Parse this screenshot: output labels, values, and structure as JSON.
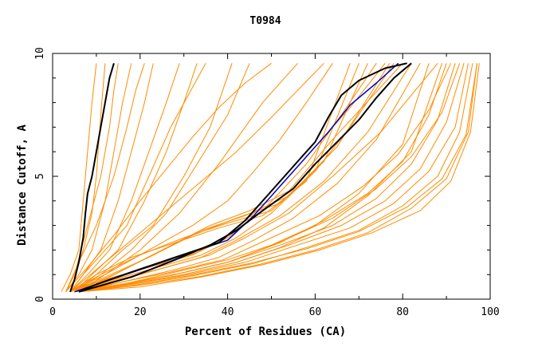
{
  "chart_data": {
    "type": "line",
    "title": "T0984",
    "xlabel": "Percent of Residues (CA)",
    "ylabel": "Distance Cutoff, A",
    "xlim": [
      0,
      100
    ],
    "ylim": [
      0,
      10
    ],
    "xticks": [
      0,
      20,
      40,
      60,
      80,
      100
    ],
    "yticks": [
      0,
      5,
      10
    ],
    "x_tick_labels": [
      "0",
      "20",
      "40",
      "60",
      "80",
      "100"
    ],
    "y_tick_labels": [
      "0",
      "5",
      "10"
    ],
    "colors": {
      "bundle": "#ff8c00",
      "highlight": "#000000",
      "blue": "#0000cc"
    },
    "series": [
      {
        "name": "orange-steep-01",
        "color": "#ff8c00",
        "x": [
          2,
          4,
          6,
          7,
          8,
          9,
          10
        ],
        "y": [
          0.3,
          1,
          2,
          4,
          6,
          8,
          9.6
        ]
      },
      {
        "name": "orange-steep-02",
        "color": "#ff8c00",
        "x": [
          3,
          5,
          7,
          9,
          10,
          11,
          12
        ],
        "y": [
          0.3,
          1,
          2,
          3.5,
          5,
          7.5,
          9.6
        ]
      },
      {
        "name": "orange-steep-03",
        "color": "#ff8c00",
        "x": [
          3,
          6,
          9,
          12,
          14,
          16,
          18
        ],
        "y": [
          0.3,
          1,
          2,
          4,
          6,
          8,
          9.6
        ]
      },
      {
        "name": "orange-steep-04",
        "color": "#ff8c00",
        "x": [
          4,
          7,
          11,
          15,
          18,
          21,
          23
        ],
        "y": [
          0.3,
          1,
          2,
          4,
          6,
          8,
          9.6
        ]
      },
      {
        "name": "orange-steep-05",
        "color": "#ff8c00",
        "x": [
          4,
          8,
          13,
          18,
          22,
          26,
          29
        ],
        "y": [
          0.3,
          1,
          2,
          4,
          6,
          8,
          9.6
        ]
      },
      {
        "name": "orange-steep-06",
        "color": "#ff8c00",
        "x": [
          5,
          9,
          15,
          21,
          26,
          30,
          33
        ],
        "y": [
          0.3,
          1,
          2,
          4,
          6,
          8,
          9.6
        ]
      },
      {
        "name": "orange-steep-07",
        "color": "#ff8c00",
        "x": [
          3,
          5,
          8,
          11,
          13,
          14,
          15
        ],
        "y": [
          0.3,
          1,
          3,
          5,
          7,
          8.5,
          9.6
        ]
      },
      {
        "name": "orange-steep-08",
        "color": "#ff8c00",
        "x": [
          4,
          7,
          12,
          17,
          22,
          27,
          35
        ],
        "y": [
          0.3,
          1,
          2,
          3,
          5,
          7,
          9.6
        ]
      },
      {
        "name": "orange-steep-09",
        "color": "#ff8c00",
        "x": [
          5,
          10,
          16,
          23,
          30,
          36,
          41
        ],
        "y": [
          0.3,
          1,
          2,
          3,
          5,
          7,
          9.6
        ]
      },
      {
        "name": "orange-steep-10",
        "color": "#ff8c00",
        "x": [
          5,
          11,
          18,
          26,
          33,
          40,
          45
        ],
        "y": [
          0.3,
          1,
          2,
          3.5,
          5.5,
          7.5,
          9.6
        ]
      },
      {
        "name": "orange-steep-11",
        "color": "#ff8c00",
        "x": [
          6,
          12,
          20,
          29,
          38,
          48,
          56
        ],
        "y": [
          0.3,
          1,
          2,
          3.5,
          5.5,
          8,
          9.6
        ]
      },
      {
        "name": "orange-steep-12",
        "color": "#ff8c00",
        "x": [
          3,
          6,
          10,
          14,
          17,
          19,
          21
        ],
        "y": [
          0.3,
          1.5,
          3,
          5,
          7,
          8.5,
          9.6
        ]
      },
      {
        "name": "orange-mid-01",
        "color": "#ff8c00",
        "x": [
          4,
          12,
          22,
          32,
          40,
          48,
          58,
          66,
          74
        ],
        "y": [
          0.3,
          0.8,
          1.3,
          1.8,
          2.5,
          3.6,
          5.5,
          7.5,
          9.6
        ]
      },
      {
        "name": "orange-mid-02",
        "color": "#ff8c00",
        "x": [
          5,
          14,
          24,
          34,
          42,
          50,
          60,
          68,
          78
        ],
        "y": [
          0.3,
          0.8,
          1.3,
          1.8,
          2.5,
          3.5,
          5.2,
          7,
          9.6
        ]
      },
      {
        "name": "orange-mid-03",
        "color": "#ff8c00",
        "x": [
          5,
          14,
          24,
          34,
          42,
          52,
          62,
          72,
          82
        ],
        "y": [
          0.3,
          0.7,
          1.2,
          1.7,
          2.4,
          3.4,
          4.8,
          6.8,
          9.6
        ]
      },
      {
        "name": "orange-mid-04",
        "color": "#ff8c00",
        "x": [
          6,
          16,
          28,
          38,
          46,
          55,
          65,
          74,
          84
        ],
        "y": [
          0.3,
          0.7,
          1.2,
          1.7,
          2.4,
          3.3,
          4.7,
          6.5,
          9.6
        ]
      },
      {
        "name": "orange-mid-05",
        "color": "#ff8c00",
        "x": [
          6,
          16,
          28,
          40,
          50,
          60,
          70,
          80,
          86
        ],
        "y": [
          0.3,
          0.6,
          1.1,
          1.6,
          2.2,
          3,
          4.3,
          6.3,
          9.6
        ]
      },
      {
        "name": "orange-mid-06",
        "color": "#ff8c00",
        "x": [
          6,
          18,
          30,
          42,
          52,
          62,
          72,
          82,
          89
        ],
        "y": [
          0.3,
          0.6,
          1,
          1.5,
          2.1,
          2.9,
          4.2,
          6,
          9.6
        ]
      },
      {
        "name": "orange-mid-07",
        "color": "#ff8c00",
        "x": [
          5,
          14,
          24,
          33,
          40,
          48,
          58,
          68,
          76
        ],
        "y": [
          0.3,
          0.9,
          1.4,
          1.9,
          2.6,
          3.8,
          5.8,
          7.8,
          9.6
        ]
      },
      {
        "name": "orange-mid-08",
        "color": "#ff8c00",
        "x": [
          5,
          15,
          26,
          36,
          44,
          54,
          64,
          75,
          88
        ],
        "y": [
          0.3,
          0.8,
          1.3,
          1.8,
          2.5,
          3.5,
          5,
          6.8,
          9.6
        ]
      },
      {
        "name": "orange-plateau-01",
        "color": "#ff8c00",
        "x": [
          4,
          10,
          18,
          28,
          38,
          48,
          58,
          68
        ],
        "y": [
          0.3,
          1,
          1.7,
          2.3,
          2.9,
          3.4,
          4.8,
          9.6
        ]
      },
      {
        "name": "orange-plateau-02",
        "color": "#ff8c00",
        "x": [
          4,
          11,
          20,
          30,
          40,
          50,
          60,
          70
        ],
        "y": [
          0.3,
          1,
          1.8,
          2.5,
          3.1,
          3.6,
          5.2,
          9.6
        ]
      },
      {
        "name": "orange-plateau-03",
        "color": "#ff8c00",
        "x": [
          4,
          12,
          22,
          32,
          42,
          52,
          62,
          72
        ],
        "y": [
          0.3,
          0.9,
          1.7,
          2.6,
          3.3,
          3.9,
          5.6,
          9.6
        ]
      },
      {
        "name": "orange-plateau-04",
        "color": "#ff8c00",
        "x": [
          4,
          13,
          24,
          34,
          44,
          54,
          65,
          77
        ],
        "y": [
          0.3,
          0.9,
          1.9,
          2.8,
          3.4,
          4.2,
          6.2,
          9.6
        ]
      },
      {
        "name": "orange-plateau-05",
        "color": "#ff8c00",
        "x": [
          5,
          14,
          25,
          36,
          45,
          54,
          64,
          80
        ],
        "y": [
          0.3,
          1,
          2,
          3,
          3.6,
          4.4,
          6.5,
          9.6
        ]
      },
      {
        "name": "orange-right-01",
        "color": "#ff8c00",
        "x": [
          5,
          16,
          28,
          40,
          52,
          62,
          72,
          80,
          86,
          90
        ],
        "y": [
          0.3,
          0.6,
          1,
          1.5,
          2.3,
          3.2,
          4.3,
          5.6,
          7.5,
          9.6
        ]
      },
      {
        "name": "orange-right-02",
        "color": "#ff8c00",
        "x": [
          5,
          16,
          28,
          40,
          52,
          64,
          74,
          82,
          88,
          92
        ],
        "y": [
          0.3,
          0.6,
          1,
          1.5,
          2.2,
          3,
          4.1,
          5.5,
          7.3,
          9.6
        ]
      },
      {
        "name": "orange-right-03",
        "color": "#ff8c00",
        "x": [
          5,
          17,
          30,
          42,
          54,
          66,
          76,
          84,
          90,
          94
        ],
        "y": [
          0.3,
          0.6,
          1,
          1.5,
          2.2,
          3,
          4,
          5.3,
          7.2,
          9.6
        ]
      },
      {
        "name": "orange-right-04",
        "color": "#ff8c00",
        "x": [
          6,
          18,
          31,
          44,
          56,
          68,
          78,
          86,
          92,
          95
        ],
        "y": [
          0.3,
          0.6,
          1,
          1.5,
          2.2,
          2.9,
          3.9,
          5.2,
          7,
          9.6
        ]
      },
      {
        "name": "orange-right-05",
        "color": "#ff8c00",
        "x": [
          6,
          18,
          32,
          46,
          58,
          70,
          80,
          88,
          93,
          96
        ],
        "y": [
          0.3,
          0.55,
          0.95,
          1.45,
          2.1,
          2.8,
          3.8,
          5,
          6.8,
          9.6
        ]
      },
      {
        "name": "orange-right-06",
        "color": "#ff8c00",
        "x": [
          6,
          19,
          33,
          47,
          60,
          72,
          82,
          90,
          95,
          97
        ],
        "y": [
          0.3,
          0.55,
          0.9,
          1.4,
          2,
          2.7,
          3.7,
          4.9,
          6.8,
          9.6
        ]
      },
      {
        "name": "orange-right-07",
        "color": "#ff8c00",
        "x": [
          6,
          20,
          34,
          48,
          61,
          73,
          84,
          91,
          95.5,
          97.5
        ],
        "y": [
          0.3,
          0.5,
          0.9,
          1.4,
          2,
          2.7,
          3.6,
          4.8,
          6.8,
          9.6
        ]
      },
      {
        "name": "orange-right-08",
        "color": "#ff8c00",
        "x": [
          5,
          17,
          29,
          41,
          53,
          64,
          74,
          82,
          89,
          93
        ],
        "y": [
          0.3,
          0.65,
          1.05,
          1.55,
          2.4,
          3.3,
          4.5,
          5.8,
          7.6,
          9.6
        ]
      },
      {
        "name": "orange-right-09",
        "color": "#ff8c00",
        "x": [
          6,
          18,
          31,
          45,
          58,
          70,
          81,
          89,
          94.5,
          97
        ],
        "y": [
          0.3,
          0.55,
          0.95,
          1.45,
          2.05,
          2.75,
          3.75,
          4.9,
          6.7,
          9.6
        ]
      },
      {
        "name": "orange-right-10",
        "color": "#ff8c00",
        "x": [
          5,
          16,
          27,
          39,
          50,
          61,
          71,
          79,
          86,
          91
        ],
        "y": [
          0.3,
          0.7,
          1.1,
          1.6,
          2.5,
          3.4,
          4.6,
          5.9,
          7.7,
          9.6
        ]
      },
      {
        "name": "orange-cross-01",
        "color": "#ff8c00",
        "x": [
          4,
          12,
          22,
          32,
          40,
          46,
          52,
          58,
          64
        ],
        "y": [
          0.3,
          1,
          2,
          3,
          4,
          5.2,
          6.5,
          8,
          9.6
        ]
      },
      {
        "name": "orange-cross-02",
        "color": "#ff8c00",
        "x": [
          4,
          10,
          18,
          26,
          34,
          42,
          50,
          56,
          62
        ],
        "y": [
          0.3,
          1.2,
          2.4,
          3.6,
          4.8,
          6,
          7.4,
          8.5,
          9.6
        ]
      },
      {
        "name": "orange-cross-03",
        "color": "#ff8c00",
        "x": [
          3,
          8,
          14,
          20,
          26,
          32,
          38,
          44,
          50
        ],
        "y": [
          0.3,
          1.3,
          2.6,
          4,
          5.3,
          6.6,
          7.8,
          8.8,
          9.6
        ]
      },
      {
        "name": "black-left",
        "color": "#000000",
        "width": 2,
        "x": [
          4,
          5,
          6,
          7,
          7.5,
          8,
          9,
          10,
          11,
          12,
          13,
          14
        ],
        "y": [
          0.3,
          0.8,
          1.5,
          2.5,
          3.5,
          4.3,
          5,
          6,
          7,
          8,
          9,
          9.6
        ]
      },
      {
        "name": "blue-line",
        "color": "#0000cc",
        "width": 1.5,
        "x": [
          5,
          10,
          20,
          30,
          40,
          46,
          52,
          58,
          63,
          68,
          74,
          79
        ],
        "y": [
          0.3,
          0.6,
          1.2,
          1.8,
          2.4,
          3.4,
          4.6,
          5.8,
          6.8,
          7.9,
          8.8,
          9.6
        ]
      },
      {
        "name": "black-upper",
        "color": "#000000",
        "width": 2,
        "x": [
          6,
          10,
          18,
          28,
          38,
          44,
          50,
          56,
          60,
          63,
          66,
          70,
          76,
          81
        ],
        "y": [
          0.3,
          0.6,
          1.1,
          1.7,
          2.3,
          3.2,
          4.4,
          5.6,
          6.4,
          7.4,
          8.3,
          8.9,
          9.4,
          9.6
        ]
      },
      {
        "name": "black-lower",
        "color": "#000000",
        "width": 2,
        "x": [
          6,
          10,
          18,
          28,
          36,
          42,
          48,
          55,
          60,
          65,
          70,
          74,
          78,
          82
        ],
        "y": [
          0.3,
          0.5,
          0.9,
          1.6,
          2.2,
          2.8,
          3.6,
          4.5,
          5.5,
          6.4,
          7.3,
          8.2,
          9,
          9.6
        ]
      }
    ]
  }
}
